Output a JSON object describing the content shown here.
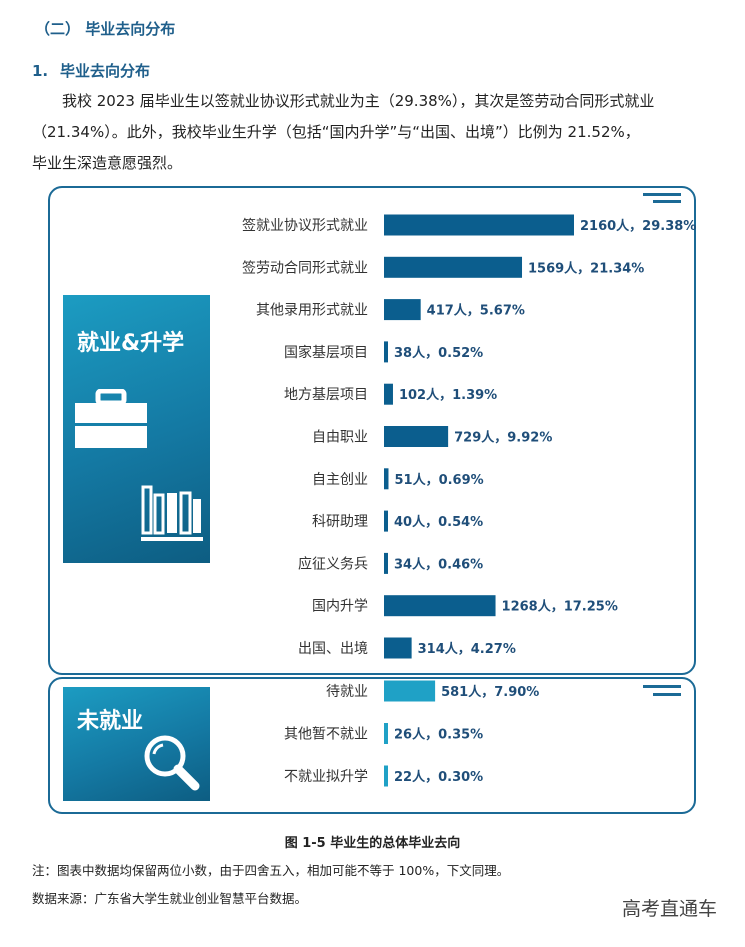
{
  "heading": {
    "section": "（二）  毕业去向分布",
    "sub_num": "1.",
    "sub_label": "毕业去向分布"
  },
  "paragraph": {
    "line1": "我校  2023  届毕业生以签就业协议形式就业为主（29.38%），其次是签劳动合同形式就业",
    "line2": "（21.34%）。此外，我校毕业生升学（包括“国内升学”与“出国、出境”）比例为 21.52%，",
    "line3": "毕业生深造意愿强烈。"
  },
  "side_labels": {
    "employment": "就业&升学",
    "unemployed": "未就业"
  },
  "icons": {
    "employment": [
      "briefcase-icon",
      "books-icon"
    ],
    "unemployed": "magnifier-icon"
  },
  "colors": {
    "employed_bar": "#0b5e8e",
    "unemployed_bar": "#1fa1c6",
    "panel_border": "#1b6a96"
  },
  "caption": "图 1-5        毕业生的总体毕业去向",
  "notes": {
    "n1": "注：图表中数据均保留两位小数，由于四舍五入，相加可能不等于 100%，下文同理。",
    "n2": "数据来源：广东省大学生就业创业智慧平台数据。"
  },
  "watermark": "高考直通车",
  "chart_data": {
    "type": "bar",
    "orientation": "horizontal",
    "groups": [
      {
        "name": "就业&升学",
        "categories": [
          "签就业协议形式就业",
          "签劳动合同形式就业",
          "其他录用形式就业",
          "国家基层项目",
          "地方基层项目",
          "自由职业",
          "自主创业",
          "科研助理",
          "应征义务兵",
          "国内升学",
          "出国、出境"
        ],
        "counts": [
          2160,
          1569,
          417,
          38,
          102,
          729,
          51,
          40,
          34,
          1268,
          314
        ],
        "percents": [
          29.38,
          21.34,
          5.67,
          0.52,
          1.39,
          9.92,
          0.69,
          0.54,
          0.46,
          17.25,
          4.27
        ],
        "value_labels": [
          "2160人，29.38%",
          "1569人，21.34%",
          "417人，5.67%",
          "38人，0.52%",
          "102人，1.39%",
          "729人，9.92%",
          "51人，0.69%",
          "40人，0.54%",
          "34人，0.46%",
          "1268人，17.25%",
          "314人，4.27%"
        ]
      },
      {
        "name": "未就业",
        "categories": [
          "待就业",
          "其他暂不就业",
          "不就业拟升学"
        ],
        "counts": [
          581,
          26,
          22
        ],
        "percents": [
          7.9,
          0.35,
          0.3
        ],
        "value_labels": [
          "581人，7.90%",
          "26人，0.35%",
          "22人，0.30%"
        ]
      }
    ]
  }
}
